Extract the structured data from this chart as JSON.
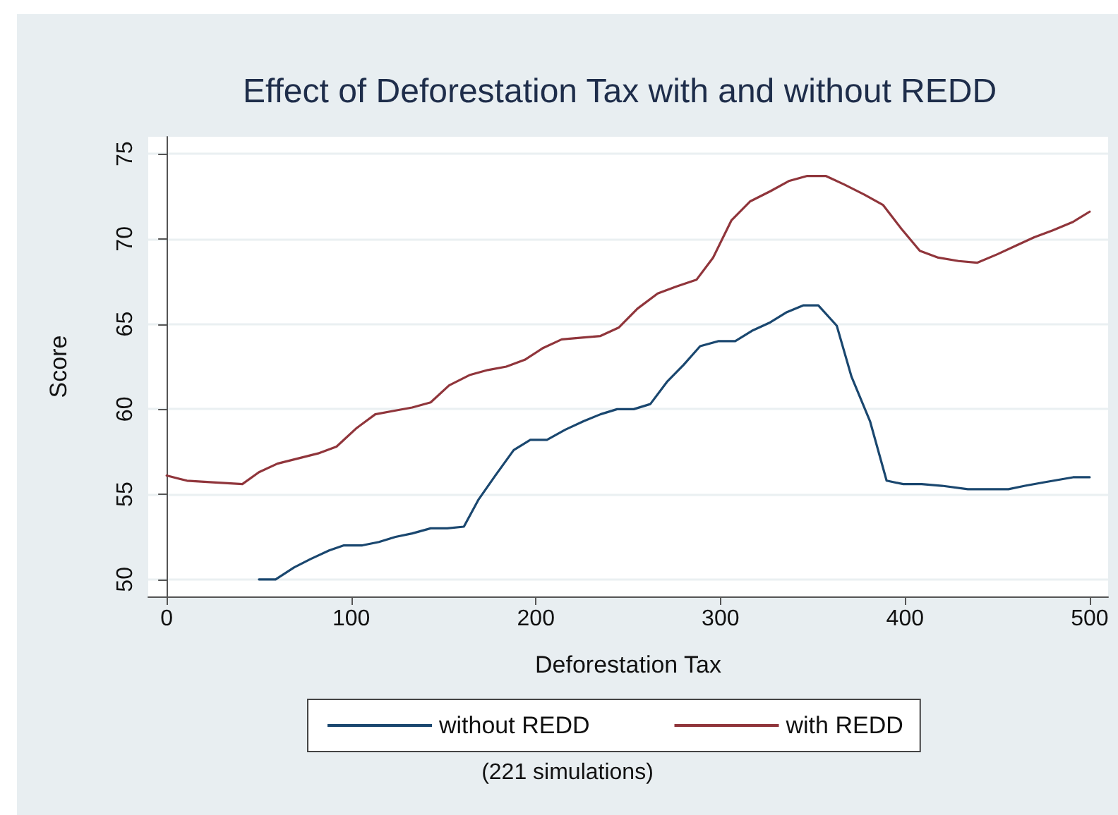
{
  "chart_data": {
    "type": "line",
    "title": "Effect of Deforestation Tax with and without REDD",
    "xlabel": "Deforestation Tax",
    "ylabel": "Score",
    "annotations": [
      "(221 simulations)"
    ],
    "xlim": [
      -10,
      510
    ],
    "ylim": [
      49,
      76
    ],
    "xticks": [
      0,
      100,
      200,
      300,
      400,
      500
    ],
    "yticks": [
      50,
      55,
      60,
      65,
      70,
      75
    ],
    "grid": "y",
    "legend": "bottom",
    "marker": "none",
    "line_style": "solid",
    "series": [
      {
        "name": "without REDD",
        "color": "#1a476f",
        "x": [
          50,
          59,
          69,
          78,
          88,
          96,
          106,
          115,
          124,
          133,
          143,
          152,
          161,
          169,
          178,
          188,
          197,
          206,
          216,
          226,
          235,
          244,
          253,
          262,
          271,
          280,
          289,
          299,
          308,
          317,
          327,
          336,
          345,
          353,
          363,
          371,
          381,
          390,
          399,
          409,
          420,
          434,
          446,
          456,
          465,
          475,
          491,
          500
        ],
        "values": [
          50.0,
          50.0,
          50.7,
          51.2,
          51.7,
          52.0,
          52.0,
          52.2,
          52.5,
          52.7,
          53.0,
          53.0,
          53.1,
          54.7,
          56.1,
          57.6,
          58.2,
          58.2,
          58.8,
          59.3,
          59.7,
          60.0,
          60.0,
          60.3,
          61.6,
          62.6,
          63.7,
          64.0,
          64.0,
          64.6,
          65.1,
          65.7,
          66.1,
          66.1,
          64.9,
          61.9,
          59.3,
          55.8,
          55.6,
          55.6,
          55.5,
          55.3,
          55.3,
          55.3,
          55.5,
          55.7,
          56.0,
          56.0
        ]
      },
      {
        "name": "with REDD",
        "color": "#90353b",
        "x": [
          0,
          11,
          25,
          41,
          50,
          60,
          71,
          82,
          92,
          103,
          113,
          123,
          133,
          143,
          153,
          164,
          174,
          184,
          194,
          204,
          214,
          225,
          235,
          245,
          255,
          266,
          276,
          287,
          296,
          306,
          316,
          327,
          337,
          347,
          357,
          367,
          378,
          388,
          398,
          408,
          418,
          429,
          439,
          450,
          460,
          470,
          480,
          491,
          500
        ],
        "values": [
          56.1,
          55.8,
          55.7,
          55.6,
          56.3,
          56.8,
          57.1,
          57.4,
          57.8,
          58.9,
          59.7,
          59.9,
          60.1,
          60.4,
          61.4,
          62.0,
          62.3,
          62.5,
          62.9,
          63.6,
          64.1,
          64.2,
          64.3,
          64.8,
          65.9,
          66.8,
          67.2,
          67.6,
          68.9,
          71.1,
          72.2,
          72.8,
          73.4,
          73.7,
          73.7,
          73.2,
          72.6,
          72.0,
          70.6,
          69.3,
          68.9,
          68.7,
          68.6,
          69.1,
          69.6,
          70.1,
          70.5,
          71.0,
          71.6
        ]
      }
    ]
  }
}
